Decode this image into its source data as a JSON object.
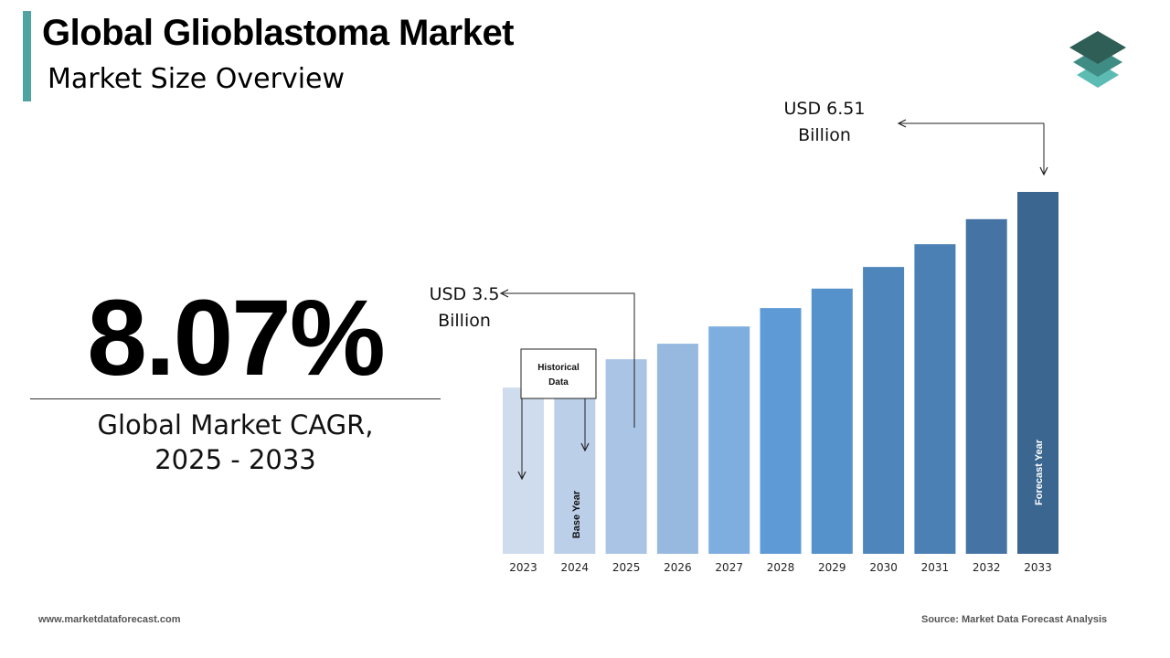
{
  "header": {
    "title": "Global Glioblastoma Market",
    "subtitle": "Market Size Overview"
  },
  "cagr": {
    "value": "8.07%",
    "label_line1": "Global Market CAGR,",
    "label_line2": "2025 - 2033"
  },
  "annotations": {
    "start_value_line1": "USD 3.5",
    "start_value_line2": "Billion",
    "end_value_line1": "USD 6.51",
    "end_value_line2": "Billion",
    "historical_line1": "Historical",
    "historical_line2": "Data",
    "base_year": "Base Year",
    "forecast_year": "Forecast Year"
  },
  "footer": {
    "website": "www.marketdataforecast.com",
    "source": "Source: Market Data Forecast Analysis"
  },
  "colors": {
    "accent_bar": "#4fa3a0",
    "logo_dark": "#2f5e57",
    "logo_mid": "#3f8c84",
    "logo_light": "#5cbcb4"
  },
  "chart_data": {
    "type": "bar",
    "categories": [
      "2023",
      "2024",
      "2025",
      "2026",
      "2027",
      "2028",
      "2029",
      "2030",
      "2031",
      "2032",
      "2033"
    ],
    "values": [
      2.99,
      3.24,
      3.5,
      3.78,
      4.09,
      4.42,
      4.77,
      5.16,
      5.57,
      6.02,
      6.51
    ],
    "bar_colors": [
      "#cfdcee",
      "#bccfe8",
      "#a9c4e5",
      "#97b9e0",
      "#7eaee0",
      "#5e9bd6",
      "#5591cb",
      "#4e86bc",
      "#4a80b4",
      "#4574a4",
      "#3b668f"
    ],
    "ylim": [
      0,
      6.51
    ],
    "grid": false,
    "legend": "none"
  }
}
